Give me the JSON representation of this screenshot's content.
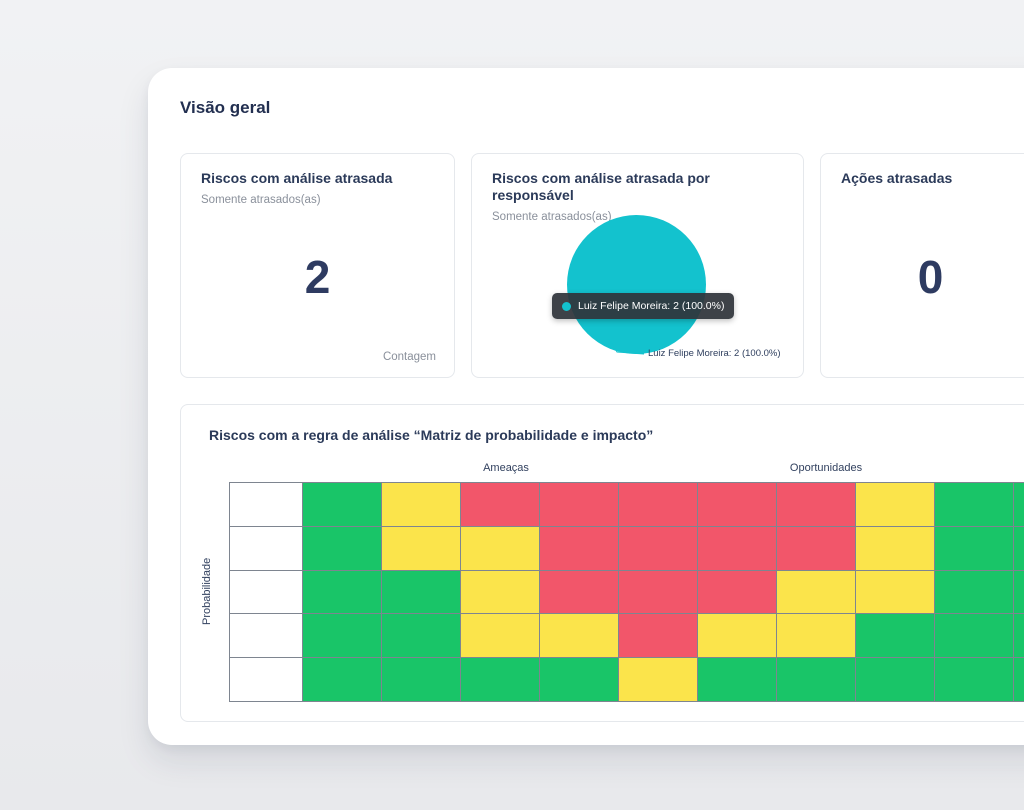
{
  "page": {
    "title": "Visão geral"
  },
  "cards": {
    "late_risk_analysis": {
      "title": "Riscos com análise atrasada",
      "subtitle": "Somente atrasados(as)",
      "value": "2",
      "footer": "Contagem"
    },
    "late_by_owner": {
      "title": "Riscos com análise atrasada por responsável",
      "subtitle": "Somente atrasados(as)",
      "tooltip": "Luiz Felipe Moreira: 2 (100.0%)",
      "callout": "Luiz Felipe Moreira: 2 (100.0%)",
      "series_color": "#13C2CE"
    },
    "late_actions": {
      "title": "Ações atrasadas",
      "value": "0"
    }
  },
  "matrix": {
    "title": "Riscos com a regra de análise “Matriz de probabilidade e impacto”",
    "threats_label": "Ameaças",
    "opportunities_label": "Oportunidades",
    "y_axis_label": "Probabilidade",
    "cell_colors": {
      "G": "#19C568",
      "Y": "#FBE44B",
      "R": "#F2566A",
      "W": "#FFFFFF"
    },
    "rows": [
      [
        "G",
        "Y",
        "R",
        "R",
        "R",
        "R",
        "R",
        "Y",
        "G",
        "G"
      ],
      [
        "G",
        "Y",
        "Y",
        "R",
        "R",
        "R",
        "R",
        "Y",
        "G",
        "G"
      ],
      [
        "G",
        "G",
        "Y",
        "R",
        "R",
        "R",
        "Y",
        "Y",
        "G",
        "G"
      ],
      [
        "G",
        "G",
        "Y",
        "Y",
        "R",
        "Y",
        "Y",
        "G",
        "G",
        "G"
      ],
      [
        "G",
        "G",
        "G",
        "G",
        "Y",
        "G",
        "G",
        "G",
        "G",
        "G"
      ]
    ]
  },
  "chart_data": [
    {
      "type": "pie",
      "title": "Riscos com análise atrasada por responsável",
      "labels": [
        "Luiz Felipe Moreira"
      ],
      "values": [
        2
      ],
      "percents": [
        100.0
      ],
      "colors": [
        "#13C2CE"
      ],
      "legend_position": "none"
    },
    {
      "type": "heatmap",
      "title": "Riscos com a regra de análise “Matriz de probabilidade e impacto”",
      "x_groups": [
        "Ameaças",
        "Oportunidades"
      ],
      "ylabel": "Probabilidade",
      "n_rows": 5,
      "n_cols": 10,
      "color_map": {
        "G": "#19C568",
        "Y": "#FBE44B",
        "R": "#F2566A"
      },
      "cells": [
        [
          "G",
          "Y",
          "R",
          "R",
          "R",
          "R",
          "R",
          "Y",
          "G",
          "G"
        ],
        [
          "G",
          "Y",
          "Y",
          "R",
          "R",
          "R",
          "R",
          "Y",
          "G",
          "G"
        ],
        [
          "G",
          "G",
          "Y",
          "R",
          "R",
          "R",
          "Y",
          "Y",
          "G",
          "G"
        ],
        [
          "G",
          "G",
          "Y",
          "Y",
          "R",
          "Y",
          "Y",
          "G",
          "G",
          "G"
        ],
        [
          "G",
          "G",
          "G",
          "G",
          "Y",
          "G",
          "G",
          "G",
          "G",
          "G"
        ]
      ]
    }
  ]
}
